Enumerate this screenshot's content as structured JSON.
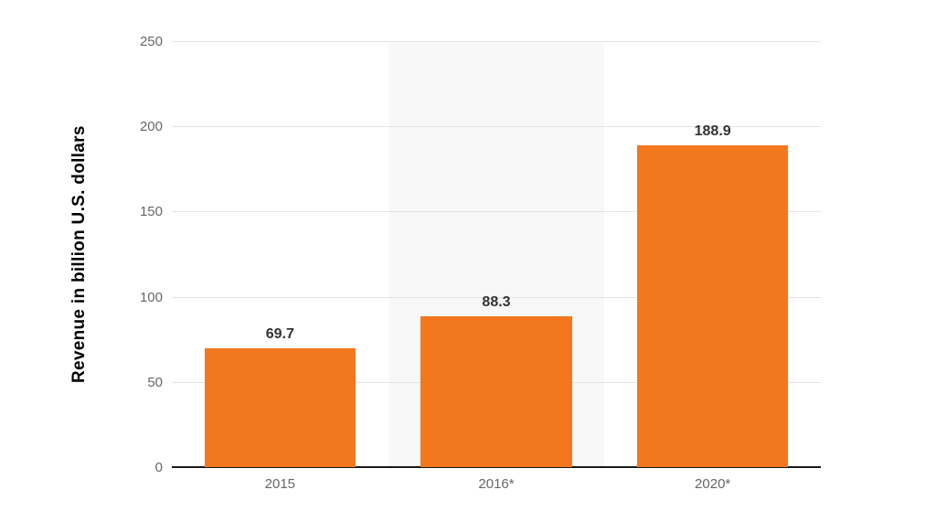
{
  "chart_data": {
    "type": "bar",
    "title": "",
    "categories": [
      "2015",
      "2016*",
      "2020*"
    ],
    "values": [
      69.7,
      88.3,
      188.9
    ],
    "value_labels": [
      "69.7",
      "88.3",
      "188.9"
    ],
    "xlabel": "",
    "ylabel": "Revenue in billion U.S. dollars",
    "ylim": [
      0,
      250
    ],
    "yticks": [
      0,
      50,
      100,
      150,
      200,
      250
    ],
    "grid": "horizontal",
    "legend": "none",
    "highlighted_category_index": 1,
    "colors": {
      "bar": "#F2771E",
      "highlight_band": "#F8F8F8",
      "gridline": "#E4E4E4",
      "axis_line": "#1A1A1A",
      "tick_label": "#666666",
      "value_label": "#333333",
      "y_axis_title": "#000000",
      "background": "#FFFFFF"
    }
  }
}
